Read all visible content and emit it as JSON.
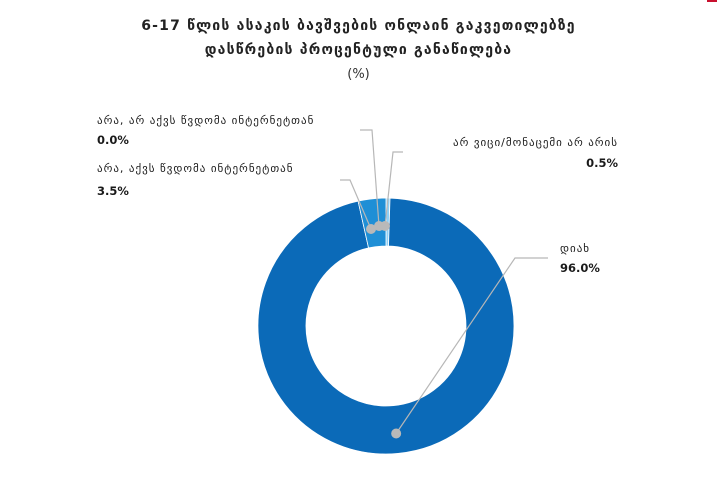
{
  "chart_data": {
    "type": "donut",
    "title_lines": [
      "6-17 წლის ასაკის ბავშვების ონლაინ გაკვეთილებზე",
      "დასწრების პროცენტული განაწილება"
    ],
    "unit": "(%)",
    "slices": [
      {
        "label": "დიახ",
        "value": 96.0,
        "value_label": "96.0%",
        "color": "#0b6ab8"
      },
      {
        "label": "არა, აქვს წვდომა ინტერნეტთან",
        "value": 3.5,
        "value_label": "3.5%",
        "color": "#1f8fd6"
      },
      {
        "label": "არა, არ აქვს წვდომა ინტერნეტთან",
        "value": 0.0,
        "value_label": "0.0%",
        "color": "#3aa6e6"
      },
      {
        "label": "არ ვიცი/მონაცემი არ არის",
        "value": 0.5,
        "value_label": "0.5%",
        "color": "#8fd0f5"
      }
    ]
  }
}
